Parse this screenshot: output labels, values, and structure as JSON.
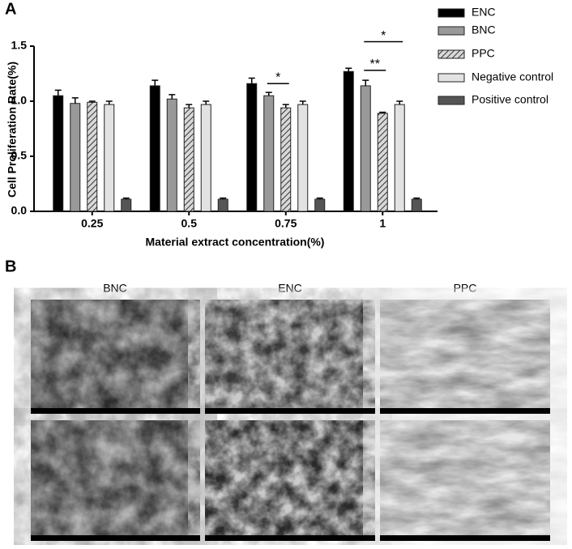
{
  "panel_a_label": "A",
  "chart_data": {
    "type": "bar",
    "y_label": "Cell Proliferation Rate(%)",
    "x_label": "Material extract concentration(%)",
    "categories": [
      "0.25",
      "0.5",
      "0.75",
      "1"
    ],
    "ylim": [
      0,
      1.5
    ],
    "yticks": [
      {
        "value": 0,
        "label": "0.0"
      },
      0.5,
      {
        "value": 1,
        "label": "1.0"
      },
      1.5
    ],
    "series": [
      {
        "name": "ENC",
        "color": "#000000",
        "values": [
          1.05,
          1.14,
          1.16,
          1.27
        ],
        "errors": [
          0.05,
          0.05,
          0.05,
          0.03
        ]
      },
      {
        "name": "BNC",
        "color": "#999999",
        "values": [
          0.98,
          1.02,
          1.05,
          1.14
        ],
        "errors": [
          0.05,
          0.04,
          0.03,
          0.05
        ]
      },
      {
        "name": "PPC",
        "color": "#8c8c8c",
        "pattern": "hatch",
        "values": [
          0.99,
          0.94,
          0.94,
          0.89
        ],
        "errors": [
          0.01,
          0.03,
          0.03,
          0.01
        ]
      },
      {
        "name": "Negative control",
        "color": "#e2e2e2",
        "values": [
          0.97,
          0.97,
          0.97,
          0.97
        ],
        "errors": [
          0.03,
          0.03,
          0.03,
          0.03
        ]
      },
      {
        "name": "Positive control",
        "color": "#555555",
        "values": [
          0.11,
          0.11,
          0.11,
          0.11
        ],
        "errors": [
          0.01,
          0.01,
          0.01,
          0.01
        ]
      }
    ],
    "significance": [
      {
        "label": "*",
        "category": 2,
        "series": [
          1,
          2
        ],
        "level": 1.16
      },
      {
        "label": "**",
        "category": 3,
        "series": [
          1,
          2
        ],
        "level": 1.28
      },
      {
        "label": "*",
        "category": 3,
        "series": [
          1,
          3
        ],
        "level": 1.54
      }
    ]
  },
  "panel_b": {
    "label": "B",
    "columns": [
      "BNC",
      "ENC",
      "PPC"
    ]
  }
}
